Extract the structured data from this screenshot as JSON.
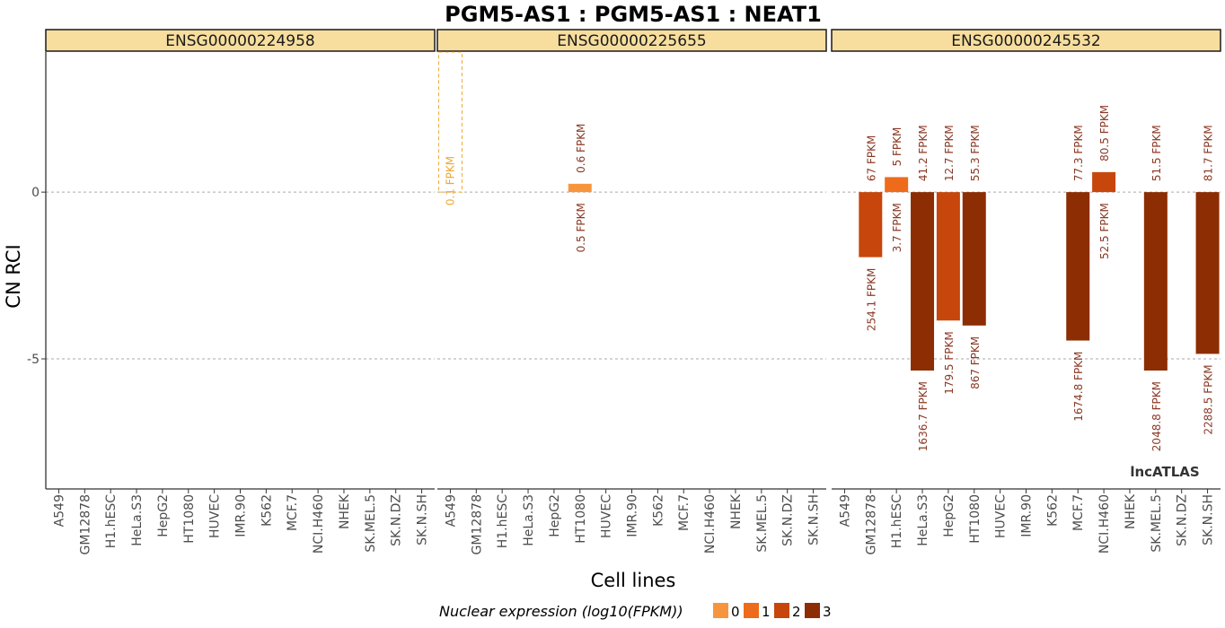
{
  "chart_data": {
    "type": "bar",
    "title": "PGM5-AS1 : PGM5-AS1 : NEAT1",
    "xlabel": "Cell lines",
    "ylabel": "CN RCI",
    "y_ticks": [
      0,
      -5
    ],
    "ylim": [
      -8.9,
      4.2
    ],
    "grid": "dashed horizontal lines at 0 and -5",
    "categories": [
      "A549",
      "GM12878",
      "H1.hESC",
      "HeLa.S3",
      "HepG2",
      "HT1080",
      "HUVEC",
      "IMR.90",
      "K562",
      "MCF.7",
      "NCI.H460",
      "NHEK",
      "SK.MEL.5",
      "SK.N.DZ",
      "SK.N.SH"
    ],
    "panels": [
      {
        "name": "ENSG00000224958",
        "bars": [],
        "dashed_bars": []
      },
      {
        "name": "ENSG00000225655",
        "bars": [
          {
            "cell": "HT1080",
            "value": 0.25,
            "level": 0,
            "top_label": "0.6 FPKM",
            "bottom_label": "0.5 FPKM"
          }
        ],
        "dashed_bars": [
          {
            "cell": "A549",
            "value": 4.2,
            "label": "0.1 FPKM"
          }
        ]
      },
      {
        "name": "ENSG00000245532",
        "bars": [
          {
            "cell": "GM12878",
            "value": -1.95,
            "level": 2,
            "top_label": "67 FPKM",
            "bottom_label": "254.1 FPKM"
          },
          {
            "cell": "H1.hESC",
            "value": 0.45,
            "level": 1,
            "top_label": "5 FPKM",
            "bottom_label": "3.7 FPKM"
          },
          {
            "cell": "HeLa.S3",
            "value": -5.35,
            "level": 3,
            "top_label": "41.2 FPKM",
            "bottom_label": "1636.7 FPKM"
          },
          {
            "cell": "HepG2",
            "value": -3.85,
            "level": 2,
            "top_label": "12.7 FPKM",
            "bottom_label": "179.5 FPKM"
          },
          {
            "cell": "HT1080",
            "value": -4.0,
            "level": 3,
            "top_label": "55.3 FPKM",
            "bottom_label": "867 FPKM"
          },
          {
            "cell": "MCF.7",
            "value": -4.45,
            "level": 3,
            "top_label": "77.3 FPKM",
            "bottom_label": "1674.8 FPKM"
          },
          {
            "cell": "NCI.H460",
            "value": 0.6,
            "level": 2,
            "top_label": "80.5 FPKM",
            "bottom_label": "52.5 FPKM"
          },
          {
            "cell": "SK.MEL.5",
            "value": -5.35,
            "level": 3,
            "top_label": "51.5 FPKM",
            "bottom_label": "2048.8 FPKM"
          },
          {
            "cell": "SK.N.SH",
            "value": -4.85,
            "level": 3,
            "top_label": "81.7 FPKM",
            "bottom_label": "2288.5 FPKM"
          }
        ],
        "dashed_bars": []
      }
    ],
    "legend": {
      "title": "Nuclear expression (log10(FPKM))",
      "placement": "bottom",
      "keys": [
        "0",
        "1",
        "2",
        "3"
      ],
      "colors": [
        "#f7953f",
        "#ee6b1b",
        "#c7460c",
        "#8c2d04"
      ]
    },
    "strip_color": "#f7de9e",
    "label_color": "#8b3a26",
    "dashed_color": "#f0a732",
    "watermark": "lncATLAS"
  }
}
